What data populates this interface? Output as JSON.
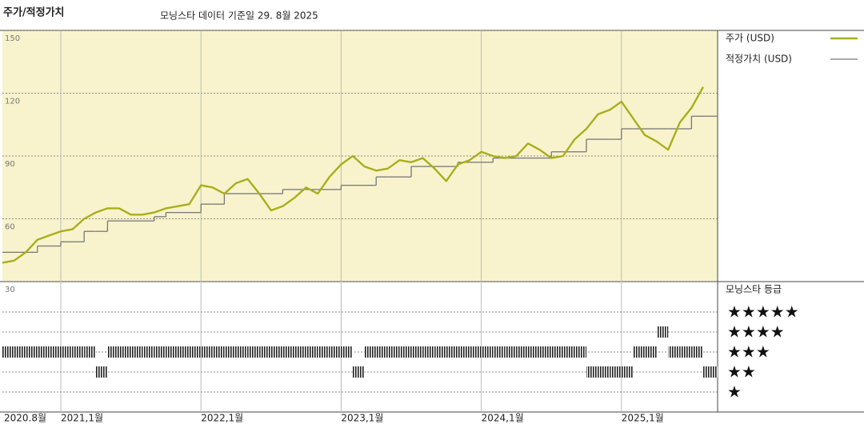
{
  "chart_data": [
    {
      "type": "line",
      "title": "주가/적정가치",
      "subtitle": "모닝스타 데이터 기준일 29. 8월 2025",
      "x": [
        "2020-08",
        "2020-09",
        "2020-10",
        "2020-11",
        "2020-12",
        "2021-01",
        "2021-02",
        "2021-03",
        "2021-04",
        "2021-05",
        "2021-06",
        "2021-07",
        "2021-08",
        "2021-09",
        "2021-10",
        "2021-11",
        "2021-12",
        "2022-01",
        "2022-02",
        "2022-03",
        "2022-04",
        "2022-05",
        "2022-06",
        "2022-07",
        "2022-08",
        "2022-09",
        "2022-10",
        "2022-11",
        "2022-12",
        "2023-01",
        "2023-02",
        "2023-03",
        "2023-04",
        "2023-05",
        "2023-06",
        "2023-07",
        "2023-08",
        "2023-09",
        "2023-10",
        "2023-11",
        "2023-12",
        "2024-01",
        "2024-02",
        "2024-03",
        "2024-04",
        "2024-05",
        "2024-06",
        "2024-07",
        "2024-08",
        "2024-09",
        "2024-10",
        "2024-11",
        "2024-12",
        "2025-01",
        "2025-02",
        "2025-03",
        "2025-04",
        "2025-05",
        "2025-06",
        "2025-07",
        "2025-08"
      ],
      "xticks": [
        {
          "value": "2020-08",
          "label": "2020.8월"
        },
        {
          "value": "2021-01",
          "label": "2021,1월"
        },
        {
          "value": "2022-01",
          "label": "2022,1월"
        },
        {
          "value": "2023-01",
          "label": "2023,1월"
        },
        {
          "value": "2024-01",
          "label": "2024,1월"
        },
        {
          "value": "2025-01",
          "label": "2025,1월"
        }
      ],
      "ylim": [
        30,
        150
      ],
      "yticks": [
        30,
        60,
        90,
        120,
        150
      ],
      "grid": true,
      "series": [
        {
          "name": "주가 (USD)",
          "color": "#a9ae1c",
          "values": [
            39,
            40,
            44,
            50,
            52,
            54,
            55,
            60,
            63,
            65,
            65,
            62,
            62,
            63,
            65,
            66,
            67,
            76,
            75,
            72,
            77,
            79,
            72,
            64,
            66,
            70,
            75,
            72,
            80,
            86,
            90,
            85,
            83,
            84,
            88,
            87,
            89,
            84,
            78,
            86,
            88,
            92,
            90,
            89,
            90,
            96,
            93,
            89,
            90,
            98,
            103,
            110,
            112,
            116,
            108,
            100,
            97,
            93,
            106,
            113,
            123
          ]
        },
        {
          "name": "적정가치 (USD)",
          "color": "#777777",
          "values": [
            44,
            44,
            44,
            47,
            47,
            49,
            49,
            54,
            54,
            59,
            59,
            59,
            59,
            61,
            63,
            63,
            63,
            67,
            67,
            72,
            72,
            72,
            72,
            72,
            74,
            74,
            74,
            74,
            74,
            76,
            76,
            76,
            80,
            80,
            80,
            85,
            85,
            85,
            85,
            87,
            87,
            87,
            89,
            89,
            89,
            89,
            89,
            92,
            92,
            92,
            98,
            98,
            98,
            103,
            103,
            103,
            103,
            103,
            103,
            109,
            109
          ]
        }
      ]
    },
    {
      "type": "rating",
      "title": "모닝스타 등급",
      "yticks": [
        {
          "value": 5,
          "label": "★★★★★"
        },
        {
          "value": 4,
          "label": "★★★★"
        },
        {
          "value": 3,
          "label": "★★★"
        },
        {
          "value": 2,
          "label": "★★"
        },
        {
          "value": 1,
          "label": "★"
        }
      ],
      "color": "#222222",
      "values": [
        3,
        3,
        3,
        3,
        3,
        3,
        3,
        3,
        2,
        3,
        3,
        3,
        3,
        3,
        3,
        3,
        3,
        3,
        3,
        3,
        3,
        3,
        3,
        3,
        3,
        3,
        3,
        3,
        3,
        3,
        2,
        3,
        3,
        3,
        3,
        3,
        3,
        3,
        3,
        3,
        3,
        3,
        3,
        3,
        3,
        3,
        3,
        3,
        3,
        3,
        2,
        2,
        2,
        2,
        3,
        3,
        4,
        3,
        3,
        3,
        2
      ]
    }
  ]
}
